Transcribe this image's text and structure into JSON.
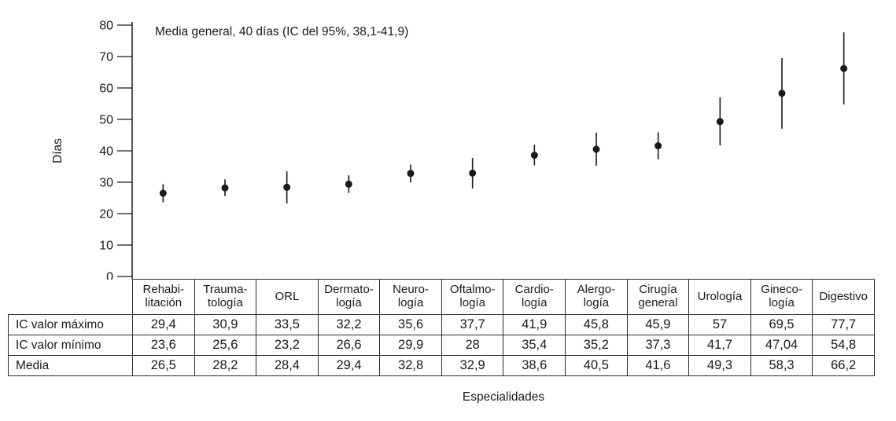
{
  "chart_data": {
    "type": "scatter",
    "title": "",
    "annotation": "Media general, 40 días (IC del 95%, 38,1-41,9)",
    "ylabel": "Días",
    "xlabel": "Especialidades",
    "ylim": [
      0,
      80
    ],
    "yticks": [
      0,
      10,
      20,
      30,
      40,
      50,
      60,
      70,
      80
    ],
    "grid": false,
    "legend_position": "none",
    "marker": "filled-circle-with-error-bar",
    "categories": [
      "Rehabilitación",
      "Traumatología",
      "ORL",
      "Dermatología",
      "Neurología",
      "Oftalmología",
      "Cardiología",
      "Alergología",
      "Cirugía general",
      "Urología",
      "Ginecología",
      "Digestivo"
    ],
    "series": [
      {
        "name": "IC valor máximo",
        "role": "ci_upper",
        "values": [
          29.4,
          30.9,
          33.5,
          32.2,
          35.6,
          37.7,
          41.9,
          45.8,
          45.9,
          57,
          69.5,
          77.7
        ]
      },
      {
        "name": "IC valor mínimo",
        "role": "ci_lower",
        "values": [
          23.6,
          25.6,
          23.2,
          26.6,
          29.9,
          28,
          35.4,
          35.2,
          37.3,
          41.7,
          47.04,
          54.8
        ]
      },
      {
        "name": "Media",
        "role": "mean",
        "values": [
          26.5,
          28.2,
          28.4,
          29.4,
          32.8,
          32.9,
          38.6,
          40.5,
          41.6,
          49.3,
          58.3,
          66.2
        ]
      }
    ]
  },
  "table": {
    "column_headers": [
      "Rehabi-\nlitación",
      "Trauma-\ntología",
      "ORL",
      "Dermato-\nlogía",
      "Neuro-\nlogía",
      "Oftalmo-\nlogía",
      "Cardio-\nlogía",
      "Alergo-\nlogía",
      "Cirugía\ngeneral",
      "Urología",
      "Gineco-\nlogía",
      "Digestivo"
    ],
    "rows": [
      {
        "label": "IC valor máximo",
        "values": [
          "29,4",
          "30,9",
          "33,5",
          "32,2",
          "35,6",
          "37,7",
          "41,9",
          "45,8",
          "45,9",
          "57",
          "69,5",
          "77,7"
        ]
      },
      {
        "label": "IC valor mínimo",
        "values": [
          "23,6",
          "25,6",
          "23,2",
          "26,6",
          "29,9",
          "28",
          "35,4",
          "35,2",
          "37,3",
          "41,7",
          "47,04",
          "54,8"
        ]
      },
      {
        "label": "Media",
        "values": [
          "26,5",
          "28,2",
          "28,4",
          "29,4",
          "32,8",
          "32,9",
          "38,6",
          "40,5",
          "41,6",
          "49,3",
          "58,3",
          "66,2"
        ]
      }
    ]
  },
  "colors": {
    "ink": "#1a1a1a",
    "border": "#2b2b2b",
    "background": "#ffffff"
  }
}
